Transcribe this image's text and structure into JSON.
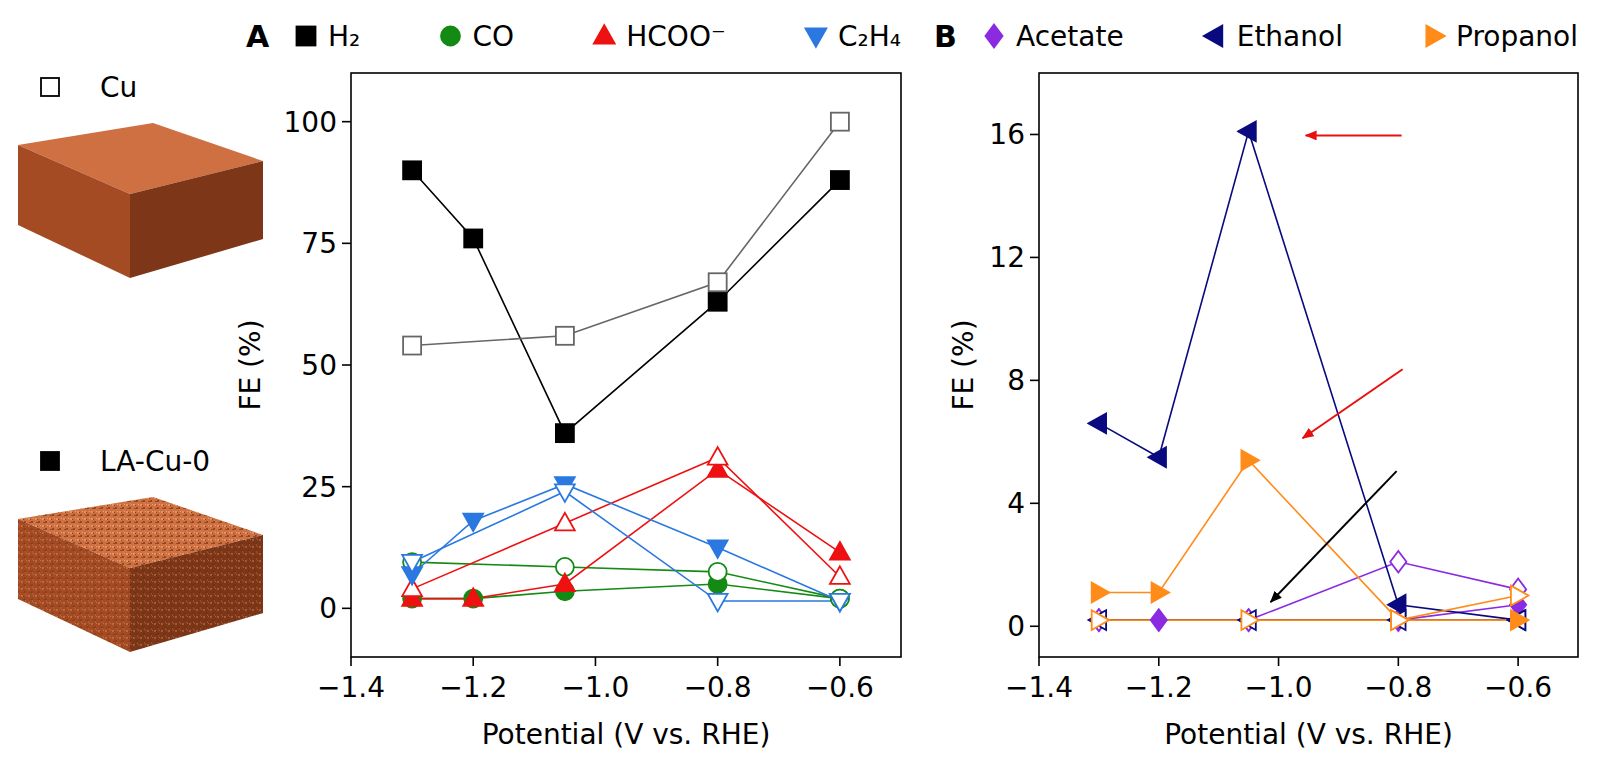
{
  "chart_data": [
    {
      "type": "line",
      "panel": "A",
      "x_label": "Potential (V vs. RHE)",
      "y_label": "FE (%)",
      "xlim": [
        -1.4,
        -0.5
      ],
      "xticks": [
        {
          "value": -1.4,
          "label": "−1.4"
        },
        {
          "value": -1.2,
          "label": "−1.2"
        },
        {
          "value": -1.0,
          "label": "−1.0"
        },
        {
          "value": -0.8,
          "label": "−0.8"
        },
        {
          "value": -0.6,
          "label": "−0.6"
        }
      ],
      "ylim": [
        -10,
        110
      ],
      "yticks": [
        0,
        25,
        50,
        75,
        100
      ],
      "legend": "top",
      "catalysts": [
        {
          "name": "Cu",
          "marker": "open-square",
          "color": "#000000"
        },
        {
          "name": "LA-Cu-0",
          "marker": "square",
          "color": "#000000"
        }
      ],
      "series": [
        {
          "name": "H₂",
          "color": "#000000",
          "marker": "square",
          "x": [
            -1.3,
            -1.2,
            -1.05,
            -0.8,
            -0.6
          ],
          "values": [
            90,
            76,
            36,
            63,
            88
          ]
        },
        {
          "name": "H₂",
          "color": "#666666",
          "marker": "open-square",
          "x": [
            -1.3,
            -1.05,
            -0.8,
            -0.6
          ],
          "values": [
            54,
            56,
            67,
            100
          ]
        },
        {
          "name": "CO",
          "color": "#138a13",
          "marker": "circle",
          "x": [
            -1.3,
            -1.2,
            -1.05,
            -0.8,
            -0.6
          ],
          "values": [
            2,
            2,
            3.5,
            5,
            2
          ]
        },
        {
          "name": "CO",
          "color": "#138a13",
          "marker": "open-circle",
          "x": [
            -1.3,
            -1.05,
            -0.8,
            -0.6
          ],
          "values": [
            9.5,
            8.5,
            7.5,
            2
          ]
        },
        {
          "name": "HCOO⁻",
          "color": "#ee1111",
          "marker": "triangle-up",
          "x": [
            -1.3,
            -1.2,
            -1.05,
            -0.8,
            -0.6
          ],
          "values": [
            2,
            2,
            5,
            28.5,
            11.5
          ]
        },
        {
          "name": "HCOO⁻",
          "color": "#ee1111",
          "marker": "open-triangle-up",
          "x": [
            -1.3,
            -1.05,
            -0.8,
            -0.6
          ],
          "values": [
            4,
            17.5,
            31,
            6.5
          ]
        },
        {
          "name": "C₂H₄",
          "color": "#2a78e0",
          "marker": "triangle-down",
          "x": [
            -1.3,
            -1.2,
            -1.05,
            -0.8,
            -0.6
          ],
          "values": [
            7,
            18,
            25.5,
            12.5,
            1.5
          ]
        },
        {
          "name": "C₂H₄",
          "color": "#2a78e0",
          "marker": "open-triangle-down",
          "x": [
            -1.3,
            -1.05,
            -0.8,
            -0.6
          ],
          "values": [
            9.5,
            24,
            1.5,
            1.5
          ]
        }
      ]
    },
    {
      "type": "line",
      "panel": "B",
      "x_label": "Potential (V vs. RHE)",
      "y_label": "FE (%)",
      "xlim": [
        -1.4,
        -0.5
      ],
      "xticks": [
        {
          "value": -1.4,
          "label": "−1.4"
        },
        {
          "value": -1.2,
          "label": "−1.2"
        },
        {
          "value": -1.0,
          "label": "−1.0"
        },
        {
          "value": -0.8,
          "label": "−0.8"
        },
        {
          "value": -0.6,
          "label": "−0.6"
        }
      ],
      "ylim": [
        -1,
        18
      ],
      "yticks": [
        0,
        4,
        8,
        12,
        16
      ],
      "legend": "top",
      "series": [
        {
          "name": "Acetate",
          "color": "#8a2be2",
          "marker": "diamond",
          "x": [
            -1.3,
            -1.2,
            -1.05,
            -0.8,
            -0.6
          ],
          "values": [
            0.2,
            0.2,
            0.2,
            0.2,
            0.7
          ]
        },
        {
          "name": "Acetate",
          "color": "#8a2be2",
          "marker": "open-diamond",
          "x": [
            -1.3,
            -1.05,
            -0.8,
            -0.6
          ],
          "values": [
            0.2,
            0.2,
            2.1,
            1.2
          ]
        },
        {
          "name": "Ethanol",
          "color": "#0a0a80",
          "marker": "triangle-left",
          "x": [
            -1.3,
            -1.2,
            -1.05,
            -0.8,
            -0.6
          ],
          "values": [
            6.6,
            5.5,
            16.1,
            0.7,
            0.2
          ]
        },
        {
          "name": "Ethanol",
          "color": "#0a0a80",
          "marker": "open-triangle-left",
          "x": [
            -1.3,
            -1.05,
            -0.8,
            -0.6
          ],
          "values": [
            0.2,
            0.2,
            0.2,
            0.2
          ]
        },
        {
          "name": "Propanol",
          "color": "#ff8c1a",
          "marker": "triangle-right",
          "x": [
            -1.3,
            -1.2,
            -1.05,
            -0.8,
            -0.6
          ],
          "values": [
            1.1,
            1.1,
            5.4,
            0.2,
            0.2
          ]
        },
        {
          "name": "Propanol",
          "color": "#ff8c1a",
          "marker": "open-triangle-right",
          "x": [
            -1.3,
            -1.05,
            -0.8,
            -0.6
          ],
          "values": [
            0.2,
            0.2,
            0.2,
            1.0
          ]
        }
      ]
    }
  ]
}
